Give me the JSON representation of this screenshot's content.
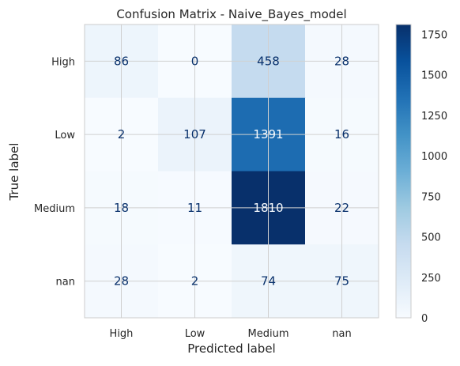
{
  "chart_data": {
    "type": "heatmap",
    "title": "Confusion Matrix - Naive_Bayes_model",
    "xlabel": "Predicted label",
    "ylabel": "True label",
    "x_categories": [
      "High",
      "Low",
      "Medium",
      "nan"
    ],
    "y_categories": [
      "High",
      "Low",
      "Medium",
      "nan"
    ],
    "matrix": [
      [
        86,
        0,
        458,
        28
      ],
      [
        2,
        107,
        1391,
        16
      ],
      [
        18,
        11,
        1810,
        22
      ],
      [
        28,
        2,
        74,
        75
      ]
    ],
    "colormap": "Blues",
    "colorbar": {
      "min": 0,
      "max": 1810,
      "ticks": [
        0,
        250,
        500,
        750,
        1000,
        1250,
        1500,
        1750
      ]
    },
    "grid": true
  },
  "colors": {
    "text_dark": "#08306b",
    "text_light": "#f7fbff",
    "grid": "#d0d0d0",
    "axis_text": "#262626"
  }
}
